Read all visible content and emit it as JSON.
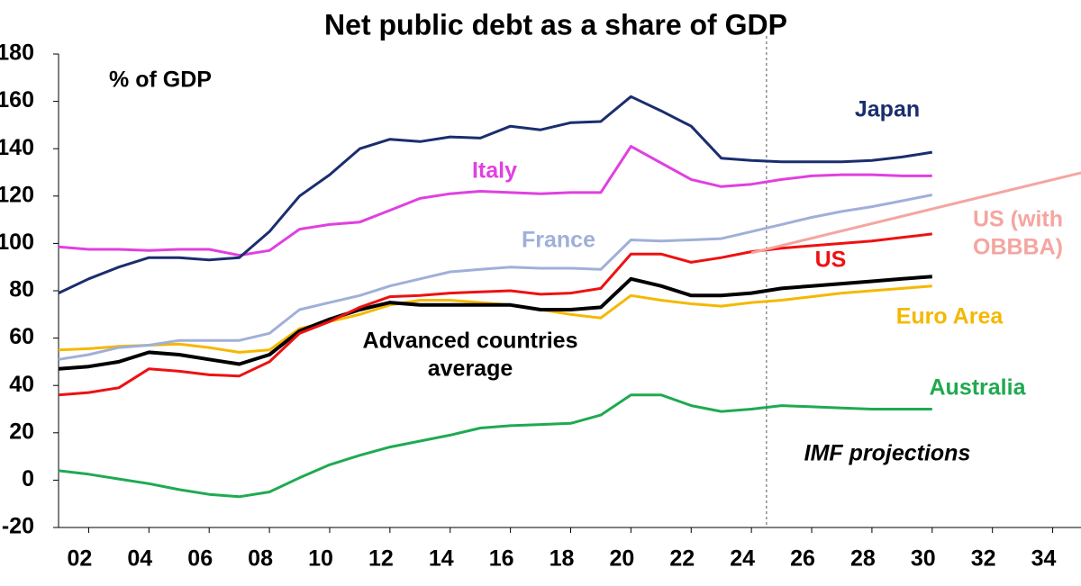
{
  "chart_data": {
    "type": "line",
    "title": "Net public debt as a share of GDP",
    "y_axis_label": "% of GDP",
    "annotation": "IMF projections",
    "projection_start": 2024.5,
    "x": [
      2001,
      2002,
      2003,
      2004,
      2005,
      2006,
      2007,
      2008,
      2009,
      2010,
      2011,
      2012,
      2013,
      2014,
      2015,
      2016,
      2017,
      2018,
      2019,
      2020,
      2021,
      2022,
      2023,
      2024,
      2025,
      2026,
      2027,
      2028,
      2029,
      2030
    ],
    "xlim": [
      2001,
      2035
    ],
    "xticks": [
      {
        "value": 2002,
        "label": "02"
      },
      {
        "value": 2004,
        "label": "04"
      },
      {
        "value": 2006,
        "label": "06"
      },
      {
        "value": 2008,
        "label": "08"
      },
      {
        "value": 2010,
        "label": "10"
      },
      {
        "value": 2012,
        "label": "12"
      },
      {
        "value": 2014,
        "label": "14"
      },
      {
        "value": 2016,
        "label": "16"
      },
      {
        "value": 2018,
        "label": "18"
      },
      {
        "value": 2020,
        "label": "20"
      },
      {
        "value": 2022,
        "label": "22"
      },
      {
        "value": 2024,
        "label": "24"
      },
      {
        "value": 2026,
        "label": "26"
      },
      {
        "value": 2028,
        "label": "28"
      },
      {
        "value": 2030,
        "label": "30"
      },
      {
        "value": 2032,
        "label": "32"
      },
      {
        "value": 2034,
        "label": "34"
      }
    ],
    "ylim": [
      -20,
      180
    ],
    "yticks": [
      -20,
      0,
      20,
      40,
      60,
      80,
      100,
      120,
      140,
      160,
      180
    ],
    "grid": false,
    "series": [
      {
        "name": "Australia",
        "color": "#1faa50",
        "values": [
          4,
          2.5,
          0.5,
          -1.5,
          -4,
          -6,
          -7,
          -5,
          1,
          6.5,
          10.5,
          14,
          16.5,
          19,
          22,
          23,
          23.5,
          24,
          27.5,
          36,
          36,
          31.5,
          29,
          30,
          31.5,
          31,
          30.5,
          30,
          30,
          30
        ]
      },
      {
        "name": "Euro Area",
        "color": "#f5b800",
        "values": [
          55,
          55.5,
          56.5,
          57,
          57.5,
          56,
          54,
          55,
          64,
          67,
          70,
          74,
          76,
          76,
          75,
          74,
          72,
          70,
          68.5,
          78,
          76,
          74.5,
          73.5,
          75,
          76,
          77.5,
          79,
          80,
          81,
          82
        ]
      },
      {
        "name": [
          "Advanced countries",
          "average"
        ],
        "color": "#000000",
        "values": [
          47,
          48,
          50,
          54,
          53,
          51,
          49,
          53,
          63,
          68,
          72,
          75,
          74,
          74,
          74,
          74,
          72,
          72,
          73,
          85,
          82,
          78,
          78,
          79,
          81,
          82,
          83,
          84,
          85,
          86
        ]
      },
      {
        "name": "US",
        "color": "#ee1111",
        "values": [
          36,
          37,
          39,
          47,
          46,
          44.5,
          44,
          50,
          62,
          67,
          73,
          77.5,
          78,
          79,
          79.5,
          80,
          78.5,
          79,
          81,
          95.5,
          95.5,
          92,
          94,
          96.5,
          98,
          99,
          100,
          101,
          102.5,
          104
        ]
      },
      {
        "name": "France",
        "color": "#9fb0d8",
        "values": [
          51,
          53,
          56,
          57,
          59,
          59,
          59,
          62,
          72,
          75,
          78,
          82,
          85,
          88,
          89,
          90,
          89.5,
          89.5,
          89,
          101.5,
          101,
          101.5,
          102,
          105,
          108,
          111,
          113.5,
          115.5,
          118,
          120.5
        ]
      },
      {
        "name": "Italy",
        "color": "#e040e0",
        "values": [
          98.5,
          97.5,
          97.5,
          97,
          97.5,
          97.5,
          95,
          97,
          106,
          108,
          109,
          114,
          119,
          121,
          122,
          121.5,
          121,
          121.5,
          121.5,
          141,
          134,
          127,
          124,
          125,
          127,
          128.5,
          129,
          129,
          128.5,
          128.5
        ]
      },
      {
        "name": "Japan",
        "color": "#1a2e6e",
        "values": [
          79,
          85,
          90,
          94,
          94,
          93,
          94,
          105,
          120,
          129,
          140,
          144,
          143,
          145,
          144.5,
          149.5,
          148,
          151,
          151.5,
          162,
          156,
          149.5,
          136,
          135,
          134.5,
          134.5,
          134.5,
          135,
          136.5,
          138.5
        ]
      },
      {
        "name": [
          "US (with",
          "OBBBA)"
        ],
        "color": "#f5a5a0",
        "x": [
          2024,
          2035
        ],
        "values": [
          96,
          130
        ]
      }
    ]
  }
}
